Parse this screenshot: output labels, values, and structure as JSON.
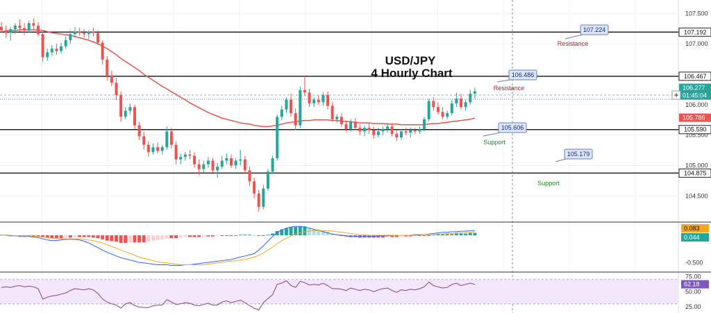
{
  "chart_data": {
    "type": "candlestick",
    "symbol": "USD/JPY",
    "title_line1": "USD/JPY",
    "title_line2": "4 Hourly Chart",
    "price_axis": {
      "ylim": [
        104.07,
        107.72
      ],
      "ticks": [
        "107.500",
        "107.000",
        "106.500",
        "106.000",
        "105.500",
        "105.000",
        "104.500"
      ]
    },
    "candles": [
      [
        107.28,
        107.36,
        107.18,
        107.22
      ],
      [
        107.22,
        107.3,
        107.1,
        107.18
      ],
      [
        107.18,
        107.28,
        107.05,
        107.24
      ],
      [
        107.24,
        107.34,
        107.16,
        107.3
      ],
      [
        107.3,
        107.4,
        107.2,
        107.26
      ],
      [
        107.26,
        107.34,
        107.14,
        107.22
      ],
      [
        107.22,
        107.38,
        107.18,
        107.34
      ],
      [
        107.34,
        107.42,
        107.24,
        107.3
      ],
      [
        107.3,
        107.36,
        107.12,
        107.16
      ],
      [
        107.16,
        107.2,
        106.7,
        106.78
      ],
      [
        106.78,
        106.92,
        106.72,
        106.86
      ],
      [
        106.86,
        106.98,
        106.8,
        106.92
      ],
      [
        106.92,
        107.0,
        106.82,
        106.88
      ],
      [
        106.88,
        107.02,
        106.84,
        106.96
      ],
      [
        106.96,
        107.12,
        106.92,
        107.06
      ],
      [
        107.06,
        107.22,
        107.0,
        107.16
      ],
      [
        107.16,
        107.28,
        107.1,
        107.2
      ],
      [
        107.2,
        107.26,
        107.14,
        107.18
      ],
      [
        107.18,
        107.24,
        107.1,
        107.16
      ],
      [
        107.16,
        107.22,
        107.08,
        107.2
      ],
      [
        107.2,
        107.26,
        107.12,
        107.18
      ],
      [
        107.18,
        107.22,
        106.98,
        107.02
      ],
      [
        107.02,
        107.06,
        106.66,
        106.74
      ],
      [
        106.74,
        106.8,
        106.4,
        106.48
      ],
      [
        106.48,
        106.56,
        106.3,
        106.36
      ],
      [
        106.36,
        106.44,
        106.08,
        106.16
      ],
      [
        106.16,
        106.22,
        105.72,
        105.8
      ],
      [
        105.8,
        105.96,
        105.76,
        105.9
      ],
      [
        105.9,
        106.02,
        105.84,
        105.96
      ],
      [
        105.96,
        106.0,
        105.6,
        105.66
      ],
      [
        105.66,
        105.72,
        105.42,
        105.48
      ],
      [
        105.48,
        105.56,
        105.26,
        105.34
      ],
      [
        105.34,
        105.4,
        105.14,
        105.22
      ],
      [
        105.22,
        105.36,
        105.18,
        105.3
      ],
      [
        105.3,
        105.38,
        105.2,
        105.24
      ],
      [
        105.24,
        105.34,
        105.18,
        105.3
      ],
      [
        105.3,
        105.64,
        105.26,
        105.56
      ],
      [
        105.56,
        105.62,
        105.28,
        105.34
      ],
      [
        105.34,
        105.4,
        105.02,
        105.1
      ],
      [
        105.1,
        105.2,
        105.02,
        105.14
      ],
      [
        105.14,
        105.22,
        105.08,
        105.18
      ],
      [
        105.18,
        105.26,
        105.1,
        105.16
      ],
      [
        105.16,
        105.22,
        104.96,
        105.02
      ],
      [
        105.02,
        105.1,
        104.84,
        104.94
      ],
      [
        104.94,
        105.08,
        104.88,
        105.02
      ],
      [
        105.02,
        105.14,
        104.96,
        105.08
      ],
      [
        105.08,
        105.12,
        104.88,
        104.92
      ],
      [
        104.92,
        105.04,
        104.8,
        104.98
      ],
      [
        104.98,
        105.16,
        104.94,
        105.08
      ],
      [
        105.08,
        105.2,
        105.02,
        105.12
      ],
      [
        105.12,
        105.18,
        104.96,
        105.0
      ],
      [
        105.0,
        105.12,
        104.94,
        105.08
      ],
      [
        105.08,
        105.26,
        105.0,
        105.1
      ],
      [
        105.1,
        105.16,
        104.86,
        104.92
      ],
      [
        104.92,
        104.98,
        104.66,
        104.74
      ],
      [
        104.74,
        104.8,
        104.46,
        104.54
      ],
      [
        104.54,
        104.6,
        104.24,
        104.32
      ],
      [
        104.32,
        104.68,
        104.28,
        104.62
      ],
      [
        104.62,
        104.94,
        104.58,
        104.9
      ],
      [
        104.9,
        105.16,
        104.86,
        105.12
      ],
      [
        105.12,
        105.84,
        105.08,
        105.8
      ],
      [
        105.8,
        105.98,
        105.74,
        105.92
      ],
      [
        105.92,
        106.12,
        105.86,
        106.08
      ],
      [
        106.08,
        106.18,
        105.8,
        105.86
      ],
      [
        105.86,
        105.94,
        105.58,
        105.66
      ],
      [
        105.66,
        106.3,
        105.62,
        106.24
      ],
      [
        106.24,
        106.48,
        106.14,
        106.2
      ],
      [
        106.2,
        106.26,
        105.96,
        106.02
      ],
      [
        106.02,
        106.12,
        105.96,
        106.08
      ],
      [
        106.08,
        106.16,
        106.0,
        106.04
      ],
      [
        106.04,
        106.2,
        105.98,
        106.16
      ],
      [
        106.16,
        106.22,
        105.92,
        105.98
      ],
      [
        105.98,
        106.04,
        105.72,
        105.76
      ],
      [
        105.76,
        105.84,
        105.7,
        105.8
      ],
      [
        105.8,
        105.86,
        105.64,
        105.68
      ],
      [
        105.68,
        105.74,
        105.56,
        105.6
      ],
      [
        105.6,
        105.76,
        105.56,
        105.72
      ],
      [
        105.72,
        105.78,
        105.58,
        105.62
      ],
      [
        105.62,
        105.68,
        105.5,
        105.56
      ],
      [
        105.56,
        105.66,
        105.48,
        105.62
      ],
      [
        105.62,
        105.7,
        105.52,
        105.58
      ],
      [
        105.58,
        105.64,
        105.44,
        105.5
      ],
      [
        105.5,
        105.62,
        105.46,
        105.56
      ],
      [
        105.56,
        105.64,
        105.5,
        105.6
      ],
      [
        105.6,
        105.7,
        105.54,
        105.64
      ],
      [
        105.64,
        105.68,
        105.48,
        105.52
      ],
      [
        105.52,
        105.58,
        105.4,
        105.46
      ],
      [
        105.46,
        105.6,
        105.42,
        105.56
      ],
      [
        105.56,
        105.62,
        105.5,
        105.54
      ],
      [
        105.54,
        105.62,
        105.46,
        105.58
      ],
      [
        105.58,
        105.62,
        105.52,
        105.56
      ],
      [
        105.56,
        105.64,
        105.52,
        105.6
      ],
      [
        105.6,
        105.8,
        105.56,
        105.76
      ],
      [
        105.76,
        106.1,
        105.72,
        106.06
      ],
      [
        106.06,
        106.12,
        105.9,
        105.96
      ],
      [
        105.96,
        106.04,
        105.84,
        105.88
      ],
      [
        105.88,
        105.96,
        105.76,
        105.8
      ],
      [
        105.8,
        105.9,
        105.76,
        105.86
      ],
      [
        105.86,
        106.08,
        105.82,
        106.02
      ],
      [
        106.02,
        106.2,
        105.96,
        106.1
      ],
      [
        106.1,
        106.18,
        105.92,
        105.96
      ],
      [
        105.96,
        106.08,
        105.9,
        106.04
      ],
      [
        106.04,
        106.24,
        106.0,
        106.18
      ],
      [
        106.18,
        106.28,
        106.1,
        106.22
      ]
    ],
    "ma_values": [
      107.2,
      107.21,
      107.22,
      107.22,
      107.23,
      107.23,
      107.23,
      107.23,
      107.23,
      107.22,
      107.2,
      107.18,
      107.17,
      107.16,
      107.15,
      107.14,
      107.12,
      107.1,
      107.08,
      107.06,
      107.03,
      107.0,
      106.96,
      106.92,
      106.87,
      106.82,
      106.76,
      106.71,
      106.66,
      106.61,
      106.56,
      106.5,
      106.45,
      106.4,
      106.35,
      106.3,
      106.26,
      106.21,
      106.17,
      106.12,
      106.08,
      106.03,
      105.99,
      105.95,
      105.91,
      105.87,
      105.84,
      105.81,
      105.78,
      105.76,
      105.74,
      105.72,
      105.7,
      105.69,
      105.68,
      105.66,
      105.65,
      105.64,
      105.64,
      105.65,
      105.66,
      105.68,
      105.7,
      105.71,
      105.72,
      105.73,
      105.74,
      105.74,
      105.75,
      105.75,
      105.75,
      105.75,
      105.74,
      105.74,
      105.73,
      105.72,
      105.72,
      105.71,
      105.7,
      105.7,
      105.7,
      105.69,
      105.69,
      105.69,
      105.68,
      105.68,
      105.68,
      105.67,
      105.67,
      105.67,
      105.67,
      105.67,
      105.67,
      105.68,
      105.69,
      105.69,
      105.7,
      105.71,
      105.72,
      105.73,
      105.74,
      105.75,
      105.76,
      105.78
    ],
    "horizontal_levels": [
      {
        "price": 107.192,
        "label": "107.192"
      },
      {
        "price": 106.467,
        "label": "106.467"
      },
      {
        "price": 105.59,
        "label": "105.590"
      },
      {
        "price": 104.875,
        "label": "104.875"
      }
    ],
    "price_badges": [
      {
        "price": 106.277,
        "label": "106.277",
        "color": "#26a69a",
        "text_color": "#ffffff"
      },
      {
        "price": 106.15,
        "label": "01:45:04",
        "color": "#26a69a",
        "text_color": "#ffffff"
      },
      {
        "price": 105.786,
        "label": "105.786",
        "color": "#ef5350",
        "text_color": "#ffffff"
      }
    ],
    "callouts": [
      {
        "label": "107.224",
        "bx": 836,
        "by": 36,
        "tx": 814,
        "ty": 56
      },
      {
        "label": "106.486",
        "bx": 733,
        "by": 101,
        "tx": 716,
        "ty": 118
      },
      {
        "label": "105.606",
        "bx": 718,
        "by": 177,
        "tx": 696,
        "ty": 196
      },
      {
        "label": "105.179",
        "bx": 813,
        "by": 215,
        "tx": 800,
        "ty": 233
      }
    ],
    "text_annotations": [
      {
        "text": "Resistance",
        "kind": "resistance",
        "x": 825,
        "y": 66
      },
      {
        "text": "Resistance",
        "kind": "resistance",
        "x": 733,
        "y": 130
      },
      {
        "text": "Support",
        "kind": "support",
        "x": 712,
        "y": 208
      },
      {
        "text": "Support",
        "kind": "support",
        "x": 790,
        "y": 267
      }
    ],
    "macd": {
      "ylim": [
        -0.6,
        0.2
      ],
      "ticks": [
        "-0.500"
      ],
      "badges": [
        {
          "label": "0.083",
          "color": "#f5a623",
          "text_color": "#111111"
        },
        {
          "label": "0.044",
          "color": "#26a69a",
          "text_color": "#ffffff"
        }
      ],
      "histogram": [
        0.01,
        0.01,
        0.0,
        0.0,
        -0.01,
        -0.01,
        -0.01,
        -0.02,
        -0.02,
        -0.03,
        -0.04,
        -0.05,
        -0.05,
        -0.05,
        -0.04,
        -0.04,
        -0.03,
        -0.03,
        -0.03,
        -0.03,
        -0.04,
        -0.05,
        -0.07,
        -0.09,
        -0.1,
        -0.11,
        -0.13,
        -0.13,
        -0.12,
        -0.12,
        -0.12,
        -0.12,
        -0.11,
        -0.09,
        -0.08,
        -0.07,
        -0.05,
        -0.05,
        -0.05,
        -0.04,
        -0.03,
        -0.03,
        -0.03,
        -0.03,
        -0.02,
        -0.02,
        -0.02,
        -0.01,
        -0.01,
        -0.01,
        0.0,
        0.0,
        0.01,
        0.01,
        0.01,
        0.0,
        -0.01,
        -0.01,
        0.01,
        0.03,
        0.07,
        0.1,
        0.12,
        0.14,
        0.14,
        0.15,
        0.15,
        0.13,
        0.11,
        0.1,
        0.08,
        0.06,
        0.03,
        0.01,
        -0.01,
        -0.02,
        -0.03,
        -0.03,
        -0.04,
        -0.04,
        -0.04,
        -0.04,
        -0.04,
        -0.04,
        -0.03,
        -0.03,
        -0.03,
        -0.02,
        -0.02,
        -0.02,
        -0.01,
        -0.01,
        -0.01,
        0.0,
        0.01,
        0.02,
        0.02,
        0.02,
        0.02,
        0.03,
        0.03,
        0.03,
        0.04,
        0.04
      ],
      "macd_line": [
        0.0,
        0.0,
        -0.01,
        -0.01,
        -0.02,
        -0.02,
        -0.02,
        -0.03,
        -0.04,
        -0.06,
        -0.08,
        -0.09,
        -0.09,
        -0.08,
        -0.07,
        -0.07,
        -0.07,
        -0.08,
        -0.1,
        -0.13,
        -0.17,
        -0.21,
        -0.25,
        -0.29,
        -0.32,
        -0.35,
        -0.38,
        -0.4,
        -0.42,
        -0.44,
        -0.46,
        -0.47,
        -0.48,
        -0.49,
        -0.5,
        -0.5,
        -0.5,
        -0.51,
        -0.51,
        -0.51,
        -0.5,
        -0.5,
        -0.49,
        -0.48,
        -0.47,
        -0.46,
        -0.45,
        -0.44,
        -0.43,
        -0.42,
        -0.41,
        -0.39,
        -0.37,
        -0.35,
        -0.33,
        -0.31,
        -0.25,
        -0.18,
        -0.1,
        -0.02,
        0.05,
        0.09,
        0.12,
        0.14,
        0.15,
        0.15,
        0.14,
        0.12,
        0.1,
        0.08,
        0.06,
        0.04,
        0.02,
        0.01,
        0.0,
        -0.01,
        -0.02,
        -0.02,
        -0.02,
        -0.02,
        -0.02,
        -0.02,
        -0.01,
        -0.01,
        -0.01,
        0.0,
        0.0,
        0.0,
        0.0,
        0.0,
        0.01,
        0.01,
        0.01,
        0.02,
        0.03,
        0.04,
        0.05,
        0.05,
        0.06,
        0.06,
        0.07,
        0.07,
        0.08,
        0.08
      ],
      "signal_line": [
        0.0,
        0.0,
        0.0,
        -0.01,
        -0.01,
        -0.01,
        -0.01,
        -0.02,
        -0.02,
        -0.03,
        -0.04,
        -0.05,
        -0.06,
        -0.06,
        -0.06,
        -0.06,
        -0.06,
        -0.06,
        -0.07,
        -0.08,
        -0.09,
        -0.11,
        -0.13,
        -0.16,
        -0.19,
        -0.22,
        -0.25,
        -0.28,
        -0.31,
        -0.34,
        -0.37,
        -0.39,
        -0.41,
        -0.43,
        -0.45,
        -0.46,
        -0.47,
        -0.48,
        -0.49,
        -0.5,
        -0.5,
        -0.5,
        -0.5,
        -0.5,
        -0.5,
        -0.49,
        -0.48,
        -0.47,
        -0.46,
        -0.45,
        -0.44,
        -0.43,
        -0.42,
        -0.41,
        -0.39,
        -0.37,
        -0.34,
        -0.3,
        -0.25,
        -0.2,
        -0.14,
        -0.09,
        -0.05,
        -0.01,
        0.02,
        0.04,
        0.06,
        0.07,
        0.08,
        0.08,
        0.08,
        0.08,
        0.07,
        0.06,
        0.05,
        0.04,
        0.03,
        0.02,
        0.01,
        0.01,
        0.0,
        0.0,
        0.0,
        0.0,
        0.0,
        0.0,
        0.0,
        0.0,
        0.0,
        0.0,
        0.0,
        0.0,
        0.01,
        0.01,
        0.01,
        0.02,
        0.02,
        0.03,
        0.03,
        0.04,
        0.04,
        0.05,
        0.05,
        0.06
      ]
    },
    "rsi": {
      "ylim": [
        15,
        80
      ],
      "ticks": [
        "75.00",
        "50.00",
        "25.00"
      ],
      "badge": {
        "label": "62.18",
        "color": "#7e57c2",
        "text_color": "#ffffff"
      },
      "band": [
        30,
        70
      ],
      "values": [
        57,
        58,
        57,
        59,
        60,
        58,
        59,
        58,
        55,
        38,
        41,
        43,
        44,
        46,
        48,
        52,
        55,
        54,
        53,
        55,
        53,
        47,
        38,
        33,
        30,
        28,
        23,
        30,
        32,
        27,
        25,
        24,
        24,
        27,
        28,
        28,
        37,
        33,
        29,
        30,
        32,
        31,
        28,
        27,
        29,
        31,
        28,
        28,
        33,
        35,
        32,
        34,
        36,
        32,
        27,
        23,
        20,
        32,
        39,
        45,
        62,
        64,
        68,
        60,
        57,
        67,
        65,
        61,
        62,
        61,
        64,
        60,
        55,
        55,
        54,
        52,
        56,
        54,
        52,
        54,
        53,
        50,
        53,
        55,
        56,
        52,
        49,
        53,
        52,
        54,
        53,
        55,
        58,
        66,
        60,
        58,
        56,
        57,
        62,
        64,
        60,
        62,
        64,
        62
      ]
    }
  }
}
